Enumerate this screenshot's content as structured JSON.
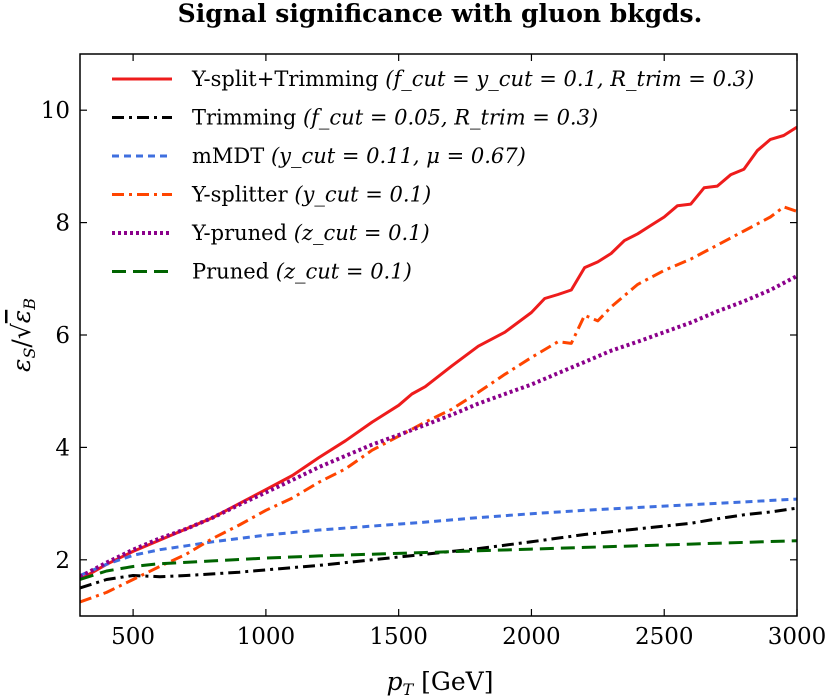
{
  "chart_data": {
    "type": "line",
    "title": "Signal significance with gluon bkgds.",
    "xlabel": "p_T [GeV]",
    "ylabel": "ε_S/√ε_B",
    "xlim": [
      300,
      3000
    ],
    "ylim": [
      1,
      11
    ],
    "xticks": [
      500,
      1000,
      1500,
      2000,
      2500,
      3000
    ],
    "yticks": [
      2,
      4,
      6,
      8,
      10
    ],
    "grid": false,
    "legend_position": "top-left",
    "series": [
      {
        "name": "Y-split+Trimming (f_cut = y_cut = 0.1, R_trim = 0.3)",
        "label_main": "Y-split+Trimming",
        "label_params": "(f_cut = y_cut = 0.1, R_trim = 0.3)",
        "color": "#ee1c1c",
        "style": "solid",
        "x": [
          300,
          400,
          500,
          600,
          700,
          800,
          900,
          1000,
          1100,
          1200,
          1300,
          1400,
          1500,
          1550,
          1600,
          1700,
          1800,
          1900,
          2000,
          2050,
          2100,
          2150,
          2200,
          2250,
          2300,
          2350,
          2400,
          2450,
          2500,
          2550,
          2600,
          2650,
          2700,
          2750,
          2800,
          2850,
          2900,
          2950,
          3000
        ],
        "y": [
          1.65,
          1.92,
          2.15,
          2.35,
          2.55,
          2.75,
          3.0,
          3.25,
          3.5,
          3.82,
          4.12,
          4.45,
          4.75,
          4.95,
          5.08,
          5.45,
          5.8,
          6.05,
          6.4,
          6.65,
          6.72,
          6.8,
          7.2,
          7.3,
          7.45,
          7.68,
          7.8,
          7.95,
          8.1,
          8.3,
          8.33,
          8.62,
          8.65,
          8.85,
          8.95,
          9.28,
          9.48,
          9.55,
          9.7
        ]
      },
      {
        "name": "Trimming (f_cut = 0.05, R_trim = 0.3)",
        "label_main": "Trimming",
        "label_params": "(f_cut = 0.05, R_trim = 0.3)",
        "color": "#000000",
        "style": "dashdot",
        "x": [
          300,
          400,
          500,
          600,
          700,
          800,
          900,
          1000,
          1200,
          1400,
          1600,
          1800,
          2000,
          2200,
          2400,
          2600,
          2700,
          2800,
          2900,
          3000
        ],
        "y": [
          1.5,
          1.65,
          1.72,
          1.7,
          1.72,
          1.75,
          1.78,
          1.82,
          1.9,
          2.0,
          2.1,
          2.2,
          2.32,
          2.45,
          2.55,
          2.65,
          2.73,
          2.8,
          2.85,
          2.92
        ]
      },
      {
        "name": "mMDT (y_cut = 0.11, μ = 0.67)",
        "label_main": "mMDT",
        "label_params": "(y_cut = 0.11, μ = 0.67)",
        "color": "#3f6fdf",
        "style": "dashed",
        "x": [
          300,
          400,
          500,
          600,
          700,
          800,
          900,
          1000,
          1200,
          1400,
          1600,
          1800,
          2000,
          2200,
          2400,
          2600,
          2800,
          3000
        ],
        "y": [
          1.72,
          1.92,
          2.08,
          2.18,
          2.25,
          2.32,
          2.38,
          2.44,
          2.53,
          2.6,
          2.67,
          2.75,
          2.82,
          2.88,
          2.93,
          2.98,
          3.03,
          3.08
        ]
      },
      {
        "name": "Y-splitter (y_cut = 0.1)",
        "label_main": "Y-splitter",
        "label_params": "(y_cut = 0.1)",
        "color": "#ff4500",
        "style": "dashdot",
        "x": [
          300,
          400,
          500,
          600,
          700,
          800,
          900,
          1000,
          1100,
          1200,
          1300,
          1400,
          1500,
          1600,
          1700,
          1800,
          1900,
          2000,
          2100,
          2150,
          2200,
          2250,
          2300,
          2400,
          2500,
          2600,
          2700,
          2800,
          2900,
          2950,
          3000
        ],
        "y": [
          1.25,
          1.42,
          1.65,
          1.88,
          2.1,
          2.38,
          2.62,
          2.88,
          3.1,
          3.38,
          3.62,
          3.95,
          4.2,
          4.45,
          4.68,
          4.98,
          5.3,
          5.6,
          5.88,
          5.85,
          6.35,
          6.25,
          6.5,
          6.9,
          7.15,
          7.35,
          7.6,
          7.85,
          8.1,
          8.28,
          8.2
        ]
      },
      {
        "name": "Y-pruned (z_cut = 0.1)",
        "label_main": "Y-pruned",
        "label_params": "(z_cut = 0.1)",
        "color": "#8b008b",
        "style": "dotted",
        "x": [
          300,
          400,
          500,
          600,
          700,
          800,
          900,
          1000,
          1100,
          1200,
          1300,
          1400,
          1500,
          1600,
          1700,
          1800,
          1900,
          2000,
          2100,
          2200,
          2300,
          2400,
          2500,
          2600,
          2700,
          2800,
          2900,
          3000
        ],
        "y": [
          1.7,
          1.95,
          2.18,
          2.38,
          2.55,
          2.75,
          2.98,
          3.2,
          3.42,
          3.65,
          3.85,
          4.05,
          4.22,
          4.4,
          4.58,
          4.78,
          4.95,
          5.12,
          5.32,
          5.52,
          5.72,
          5.88,
          6.05,
          6.22,
          6.42,
          6.6,
          6.8,
          7.05
        ]
      },
      {
        "name": "Pruned (z_cut = 0.1)",
        "label_main": "Pruned",
        "label_params": "(z_cut = 0.1)",
        "color": "#006400",
        "style": "longdash",
        "x": [
          300,
          400,
          500,
          600,
          800,
          1000,
          1200,
          1400,
          1600,
          1800,
          2000,
          2200,
          2400,
          2600,
          2800,
          3000
        ],
        "y": [
          1.65,
          1.8,
          1.88,
          1.93,
          1.98,
          2.03,
          2.07,
          2.1,
          2.13,
          2.16,
          2.19,
          2.22,
          2.25,
          2.28,
          2.31,
          2.34
        ]
      }
    ]
  }
}
